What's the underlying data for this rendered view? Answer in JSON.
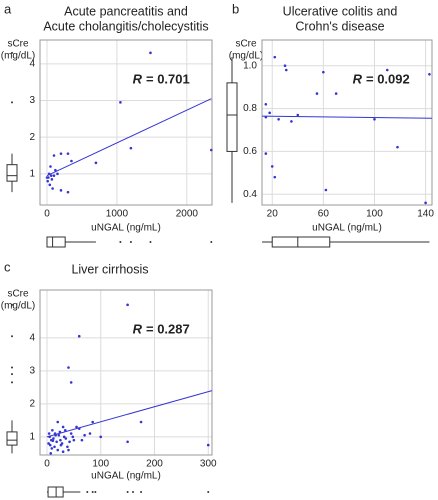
{
  "chart_data": [
    {
      "type": "scatter",
      "panel": "a",
      "title": [
        "Acute pancreatitis and",
        "Acute cholangitis/cholecystitis"
      ],
      "ylabel": [
        "sCre",
        "(mg/dL)"
      ],
      "xlabel": "uNGAL (ng/mL)",
      "stat_symbol": "R",
      "stat_text": "= 0.701",
      "x": [
        1480,
        1050,
        1200,
        2350,
        300,
        200,
        100,
        350,
        700,
        50,
        30,
        60,
        20,
        100,
        150,
        10,
        40,
        80,
        200,
        300,
        0,
        70,
        120
      ],
      "y": [
        4.3,
        2.95,
        1.7,
        1.65,
        1.55,
        1.55,
        1.5,
        1.35,
        1.3,
        1.2,
        1.0,
        0.95,
        0.9,
        0.95,
        1.0,
        0.8,
        0.7,
        0.6,
        0.55,
        0.5,
        0.9,
        0.85,
        1.1
      ],
      "fit": {
        "x": [
          0,
          2350
        ],
        "y": [
          0.95,
          3.05
        ]
      },
      "xlim": [
        -100,
        2360
      ],
      "xticks": [
        0,
        1000,
        2000
      ],
      "ylim": [
        0.15,
        4.65
      ],
      "yticks": [
        1,
        2,
        3,
        4
      ],
      "y_box": {
        "whislo": 0.5,
        "q1": 0.8,
        "median": 0.95,
        "q3": 1.25,
        "whishi": 1.55,
        "outliers": [
          2.95,
          4.3
        ]
      },
      "x_box": {
        "whislo": 0,
        "q1": 0,
        "median": 80,
        "q3": 260,
        "whishi": 700,
        "outliers": [
          1050,
          1200,
          1480,
          2350
        ]
      },
      "color": "#3535d6",
      "grid": true
    },
    {
      "type": "scatter",
      "panel": "b",
      "title": [
        "Ulcerative colitis and",
        "Crohn's disease"
      ],
      "ylabel": [
        "sCre",
        "(mg/dL)"
      ],
      "xlabel": "uNGAL (ng/mL)",
      "stat_symbol": "R",
      "stat_text": "= 0.092",
      "x": [
        22,
        30,
        31,
        60,
        110,
        143,
        15,
        18,
        15,
        25,
        40,
        55,
        70,
        35,
        20,
        22,
        15,
        62,
        118,
        140,
        100
      ],
      "y": [
        1.04,
        1.0,
        0.98,
        0.97,
        0.98,
        0.96,
        0.82,
        0.78,
        0.76,
        0.75,
        0.77,
        0.87,
        0.87,
        0.74,
        0.53,
        0.48,
        0.59,
        0.42,
        0.62,
        0.36,
        0.75
      ],
      "fit": {
        "x": [
          12,
          145
        ],
        "y": [
          0.765,
          0.755
        ]
      },
      "xlim": [
        12,
        145
      ],
      "xticks": [
        20,
        60,
        100,
        140
      ],
      "ylim": [
        0.35,
        1.12
      ],
      "yticks": [
        0.4,
        0.6,
        0.8,
        {
          "value": 1,
          "label": "1.0"
        }
      ],
      "y_box": {
        "whislo": 0.36,
        "q1": 0.6,
        "median": 0.77,
        "q3": 0.92,
        "whishi": 1.04,
        "outliers": []
      },
      "x_box": {
        "whislo": 12,
        "q1": 20,
        "median": 40,
        "q3": 65,
        "whishi": 143,
        "outliers": []
      },
      "color": "#3535d6",
      "grid": true
    },
    {
      "type": "scatter",
      "panel": "c",
      "title": [
        "Liver cirrhosis"
      ],
      "ylabel": [
        "sCre",
        "(mg/dL)"
      ],
      "xlabel": "uNGAL (ng/mL)",
      "stat_symbol": "R",
      "stat_text": "= 0.287",
      "x": [
        150,
        60,
        40,
        45,
        175,
        300,
        150,
        85,
        100,
        80,
        55,
        60,
        30,
        20,
        10,
        15,
        5,
        8,
        12,
        18,
        22,
        25,
        28,
        32,
        35,
        38,
        42,
        45,
        48,
        50,
        3,
        6,
        9,
        14,
        20,
        26,
        30,
        16,
        11,
        24,
        34,
        40,
        65,
        70,
        4,
        7
      ],
      "y": [
        5.0,
        4.05,
        3.1,
        2.65,
        1.45,
        0.75,
        0.85,
        1.45,
        1.0,
        1.1,
        1.3,
        1.25,
        1.3,
        1.45,
        1.2,
        1.1,
        1.0,
        0.9,
        0.95,
        0.85,
        1.05,
        0.9,
        0.8,
        1.0,
        0.95,
        0.7,
        0.85,
        1.1,
        1.0,
        0.9,
        0.8,
        0.75,
        0.65,
        0.7,
        0.6,
        0.75,
        0.55,
        1.05,
        0.88,
        1.15,
        1.2,
        0.6,
        0.9,
        1.05,
        1.1,
        0.5
      ],
      "fit": {
        "x": [
          0,
          307
        ],
        "y": [
          1.0,
          2.4
        ]
      },
      "xlim": [
        -13,
        307
      ],
      "xticks": [
        0,
        100,
        200,
        300
      ],
      "ylim": [
        0.45,
        5.45
      ],
      "yticks": [
        1,
        2,
        3,
        4
      ],
      "y_box": {
        "whislo": 0.5,
        "q1": 0.75,
        "median": 0.9,
        "q3": 1.15,
        "whishi": 1.5,
        "outliers": [
          2.65,
          2.9,
          3.1,
          4.05,
          5.0
        ]
      },
      "x_box": {
        "whislo": 0,
        "q1": 2,
        "median": 17,
        "q3": 30,
        "whishi": 62,
        "outliers": [
          75,
          85,
          90,
          150,
          160,
          175,
          300
        ]
      },
      "color": "#3535d6",
      "grid": true
    }
  ]
}
